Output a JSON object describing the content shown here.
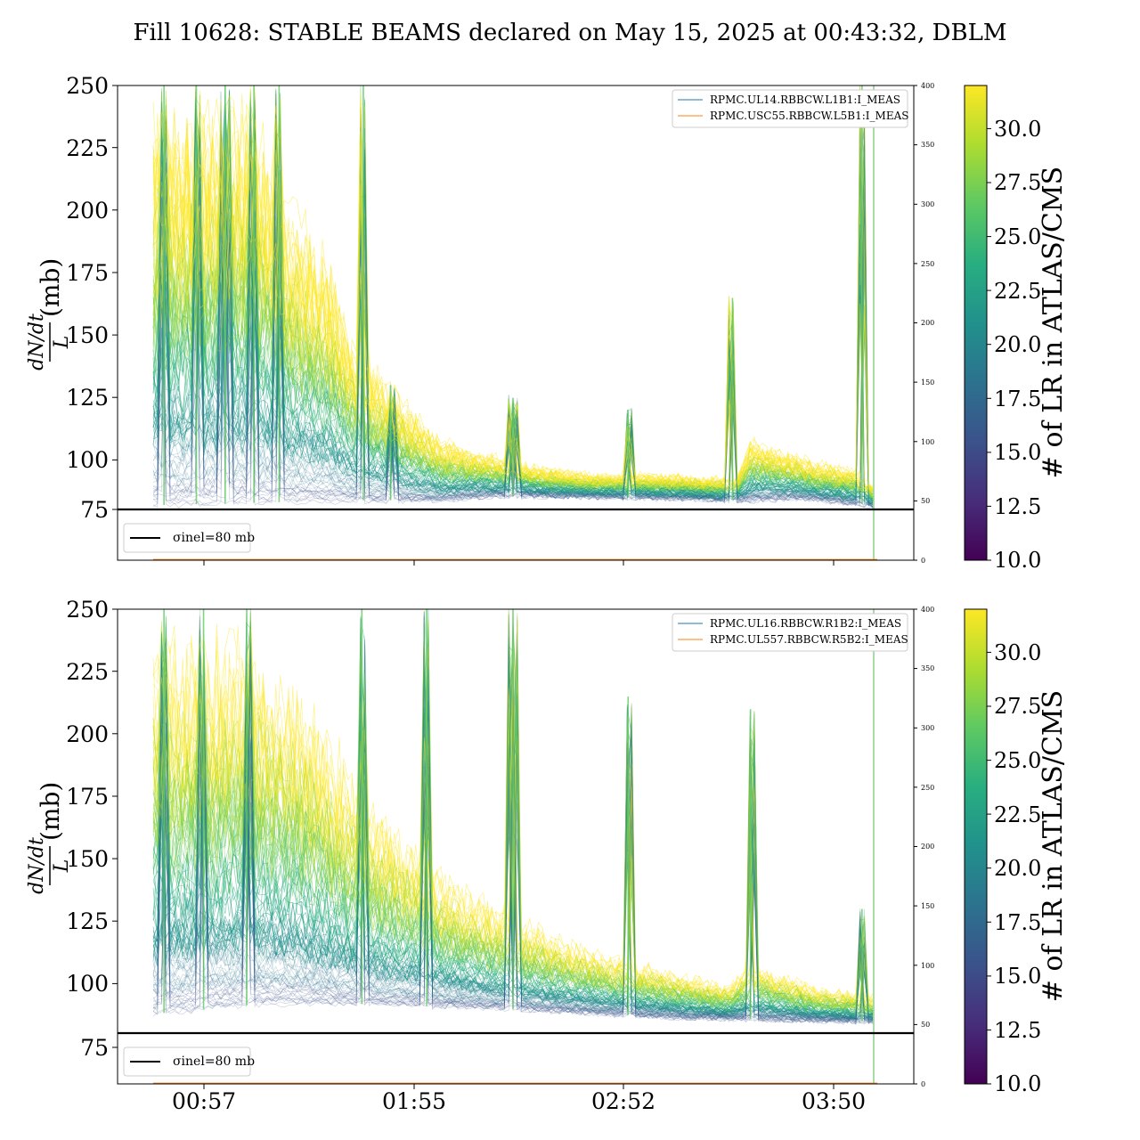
{
  "chart_data": [
    {
      "type": "line",
      "title": "Fill 10628: STABLE BEAMS declared on May 15, 2025 at 00:43:32, DBLM",
      "ylabel": "(mb)",
      "ylabel_numerator": "dN/dt",
      "ylabel_denominator": "L",
      "ylim": [
        60,
        250
      ],
      "y_ticks": [
        "75",
        "100",
        "125",
        "150",
        "175",
        "200",
        "225",
        "250"
      ],
      "y2lim": [
        0,
        400
      ],
      "y2_ticks": [
        "0",
        "50",
        "100",
        "150",
        "200",
        "250",
        "300",
        "350",
        "400"
      ],
      "x_ticks": [
        "00:57",
        "01:55",
        "02:52",
        "03:50"
      ],
      "legend": [
        "RPMC.UL14.RBBCW.L1B1:I_MEAS",
        "RPMC.USC55.RBBCW.L5B1:I_MEAS"
      ],
      "legend2": "σinel=80 mb",
      "reference_line": 80,
      "legend_placement": "top-right",
      "colorbar": {
        "label": "# of LR in ATLAS/CMS",
        "range": [
          10,
          32
        ],
        "ticks": [
          "10.0",
          "12.5",
          "15.0",
          "17.5",
          "20.0",
          "22.5",
          "25.0",
          "27.5",
          "30.0"
        ],
        "colormap": "viridis"
      },
      "time_range": [
        "00:33",
        "04:01"
      ],
      "floor_profile": [
        [
          0.0,
          82
        ],
        [
          0.28,
          84
        ],
        [
          0.4,
          84
        ],
        [
          0.48,
          86
        ],
        [
          0.7,
          85
        ],
        [
          0.83,
          84
        ],
        [
          0.9,
          85
        ],
        [
          1.0,
          82
        ]
      ],
      "envelope": [
        [
          0.0,
          250
        ],
        [
          0.1,
          250
        ],
        [
          0.14,
          250
        ],
        [
          0.18,
          215
        ],
        [
          0.24,
          190
        ],
        [
          0.28,
          150
        ],
        [
          0.35,
          125
        ],
        [
          0.4,
          110
        ],
        [
          0.5,
          100
        ],
        [
          0.6,
          95
        ],
        [
          0.7,
          95
        ],
        [
          0.81,
          93
        ],
        [
          0.83,
          110
        ],
        [
          0.92,
          100
        ],
        [
          0.98,
          97
        ],
        [
          1.0,
          90
        ]
      ],
      "spikes": [
        [
          0.015,
          250
        ],
        [
          0.06,
          250
        ],
        [
          0.1,
          250
        ],
        [
          0.14,
          250
        ],
        [
          0.175,
          250
        ],
        [
          0.292,
          250
        ],
        [
          0.33,
          130
        ],
        [
          0.5,
          125
        ],
        [
          0.66,
          120
        ],
        [
          0.805,
          165
        ],
        [
          0.985,
          250
        ]
      ],
      "colors": {
        "low": "#440154",
        "mid": "#21918c",
        "high": "#fde725",
        "axis": "#000000"
      }
    },
    {
      "type": "line",
      "ylabel": "(mb)",
      "ylabel_numerator": "dN/dt",
      "ylabel_denominator": "L",
      "ylim": [
        60,
        250
      ],
      "y_ticks": [
        "75",
        "100",
        "125",
        "150",
        "175",
        "200",
        "225",
        "250"
      ],
      "y2lim": [
        0,
        400
      ],
      "y2_ticks": [
        "0",
        "50",
        "100",
        "150",
        "200",
        "250",
        "300",
        "350",
        "400"
      ],
      "x_ticks": [
        "00:57",
        "01:55",
        "02:52",
        "03:50"
      ],
      "legend": [
        "RPMC.UL16.RBBCW.R1B2:I_MEAS",
        "RPMC.UL557.RBBCW.R5B2:I_MEAS"
      ],
      "legend2": "σinel=80 mb",
      "reference_line": 80,
      "legend_placement": "top-right",
      "colorbar": {
        "label": "# of LR in ATLAS/CMS",
        "range": [
          10,
          32
        ],
        "ticks": [
          "10.0",
          "12.5",
          "15.0",
          "17.5",
          "20.0",
          "22.5",
          "25.0",
          "27.5",
          "30.0"
        ],
        "colormap": "viridis"
      },
      "time_range": [
        "00:33",
        "04:01"
      ],
      "floor_profile": [
        [
          0.0,
          88
        ],
        [
          0.15,
          92
        ],
        [
          0.3,
          92
        ],
        [
          0.5,
          90
        ],
        [
          0.7,
          87
        ],
        [
          0.83,
          86
        ],
        [
          1.0,
          85
        ]
      ],
      "envelope": [
        [
          0.0,
          250
        ],
        [
          0.12,
          250
        ],
        [
          0.2,
          230
        ],
        [
          0.3,
          180
        ],
        [
          0.4,
          150
        ],
        [
          0.5,
          130
        ],
        [
          0.6,
          117
        ],
        [
          0.7,
          108
        ],
        [
          0.8,
          100
        ],
        [
          0.83,
          110
        ],
        [
          0.92,
          100
        ],
        [
          1.0,
          96
        ]
      ],
      "spikes": [
        [
          0.015,
          250
        ],
        [
          0.07,
          250
        ],
        [
          0.13,
          250
        ],
        [
          0.29,
          250
        ],
        [
          0.38,
          250
        ],
        [
          0.5,
          250
        ],
        [
          0.66,
          215
        ],
        [
          0.83,
          210
        ],
        [
          0.985,
          130
        ]
      ],
      "colors": {
        "low": "#440154",
        "mid": "#21918c",
        "high": "#fde725",
        "axis": "#000000"
      }
    }
  ]
}
